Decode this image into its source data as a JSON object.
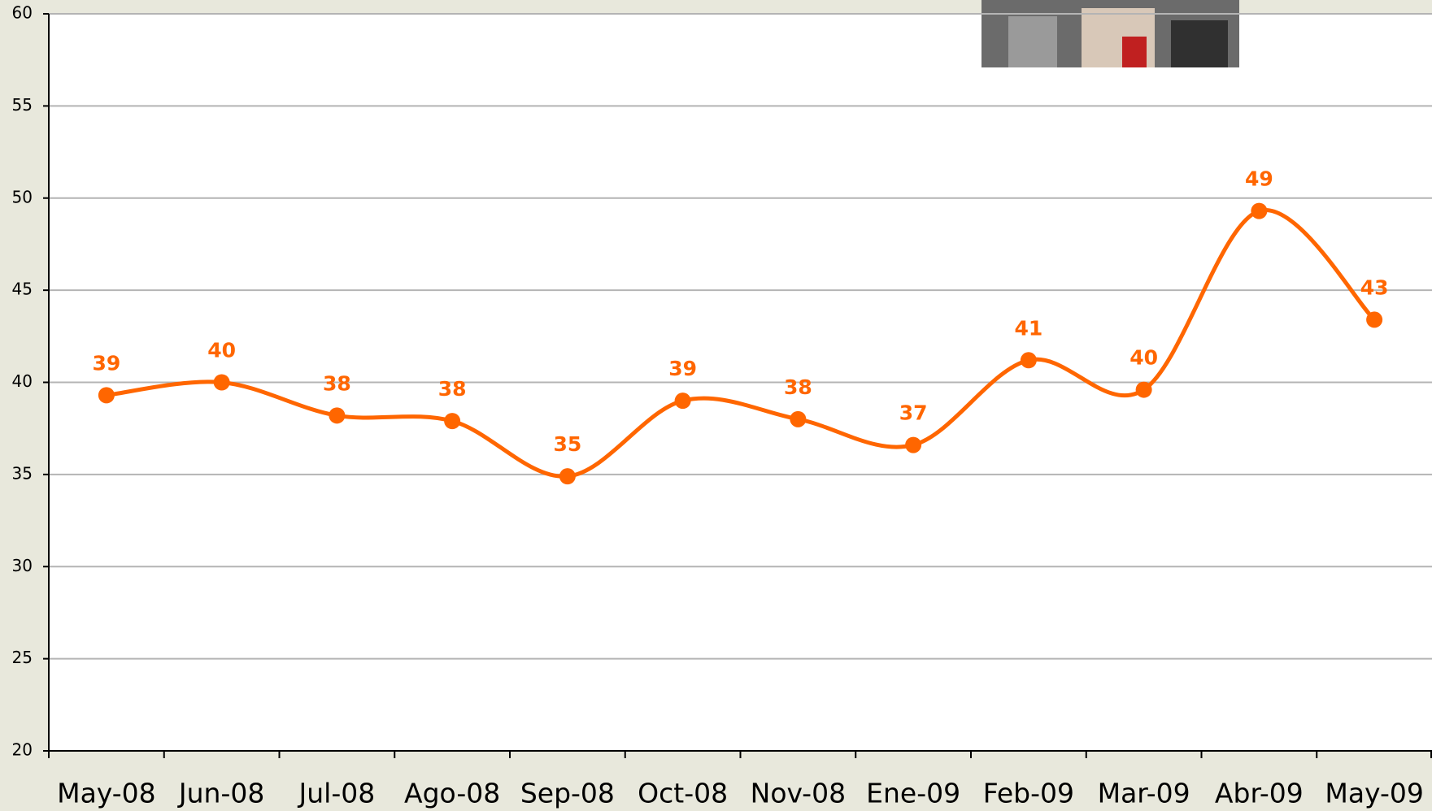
{
  "chart_data": {
    "type": "line",
    "categories": [
      "May-08",
      "Jun-08",
      "Jul-08",
      "Ago-08",
      "Sep-08",
      "Oct-08",
      "Nov-08",
      "Ene-09",
      "Feb-09",
      "Mar-09",
      "Abr-09",
      "May-09"
    ],
    "values": [
      39.3,
      40,
      38.2,
      37.9,
      34.9,
      39,
      38,
      36.6,
      41.2,
      39.6,
      49.3,
      43.4
    ],
    "value_labels": [
      "39",
      "40",
      "38",
      "38",
      "35",
      "39",
      "38",
      "37",
      "41",
      "40",
      "49",
      "43"
    ],
    "color": "#ff6600",
    "ylim": [
      20,
      60
    ],
    "yticks": [
      20,
      25,
      30,
      35,
      40,
      45,
      50,
      55,
      60
    ],
    "grid": true
  }
}
